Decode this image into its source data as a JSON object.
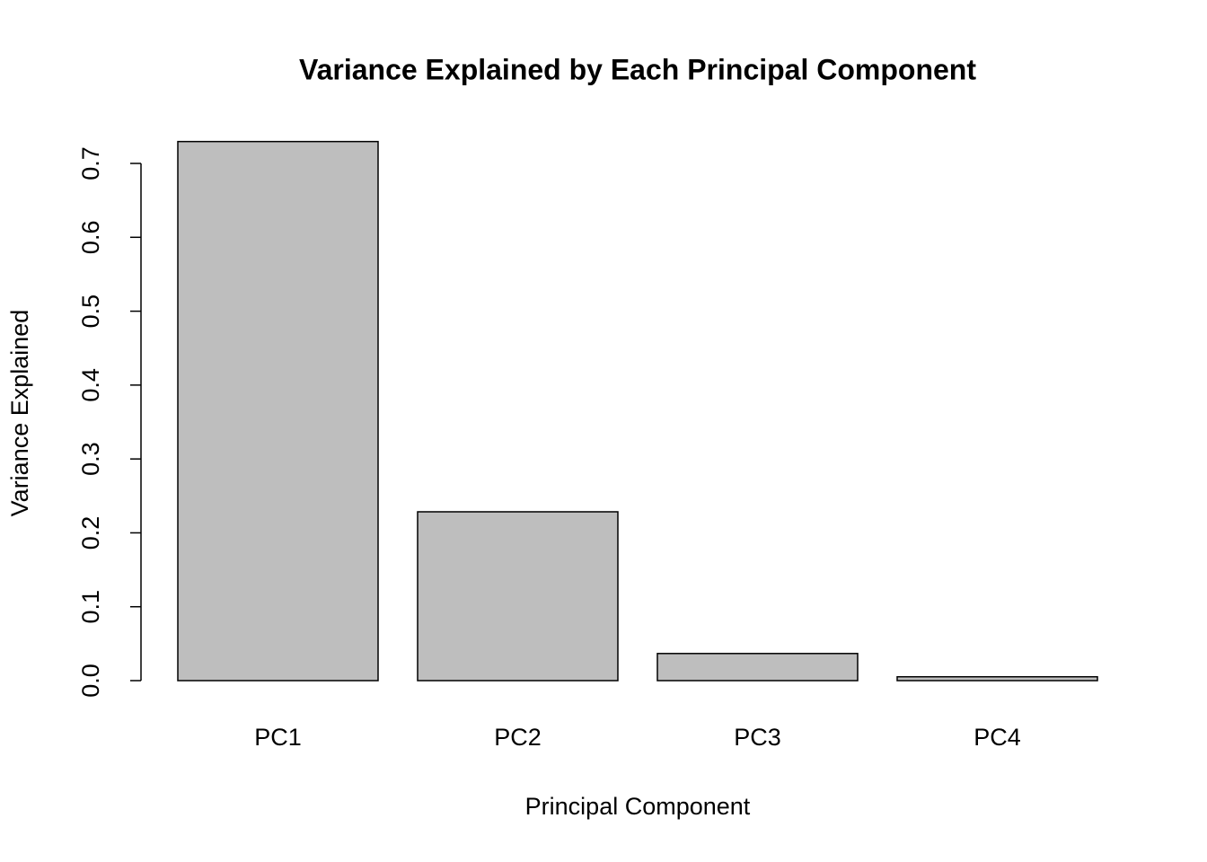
{
  "chart_data": {
    "type": "bar",
    "title": "Variance Explained by Each Principal Component",
    "x_label": "Principal Component",
    "y_label": "Variance Explained",
    "categories": [
      "PC1",
      "PC2",
      "PC3",
      "PC4"
    ],
    "values": [
      0.7296,
      0.2285,
      0.0367,
      0.0052
    ],
    "color": "#bebebe",
    "ylim": [
      0,
      0.7
    ],
    "yticks": [
      {
        "value": 0,
        "label": "0.0"
      },
      0.1,
      0.2,
      0.3,
      0.4,
      0.5,
      0.6,
      0.7
    ],
    "grid": false
  }
}
